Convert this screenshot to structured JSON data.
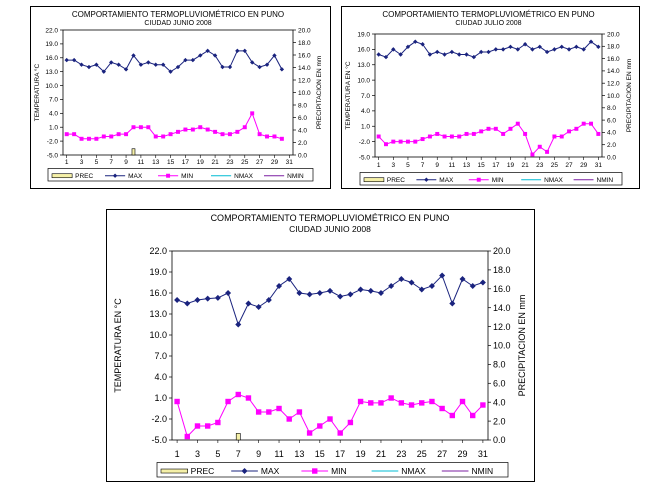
{
  "chart_data": [
    {
      "type": "line",
      "title": "COMPORTAMIENTO TERMOPLUVIOMÉTRICO EN PUNO",
      "subtitle": "CIUDAD JUNIO 2008",
      "ylabel": "TEMPERATURA °C",
      "ylabel2": "PRECIPITACION EN mm",
      "ylim": [
        -5,
        22
      ],
      "yticks": [
        "22.0",
        "19.0",
        "16.0",
        "13.0",
        "10.0",
        "7.0",
        "4.0",
        "1.0",
        "-2.0",
        "-5.0"
      ],
      "y2lim": [
        0,
        20
      ],
      "y2ticks": [
        "20.0",
        "18.0",
        "16.0",
        "14.0",
        "12.0",
        "10.0",
        "8.0",
        "6.0",
        "4.0",
        "2.0",
        "0.0"
      ],
      "x": [
        1,
        2,
        3,
        4,
        5,
        6,
        7,
        8,
        9,
        10,
        11,
        12,
        13,
        14,
        15,
        16,
        17,
        18,
        19,
        20,
        21,
        22,
        23,
        24,
        25,
        26,
        27,
        28,
        29,
        30,
        31
      ],
      "xticks": [
        "1",
        "3",
        "5",
        "7",
        "9",
        "11",
        "13",
        "15",
        "17",
        "19",
        "21",
        "23",
        "25",
        "27",
        "29",
        "31"
      ],
      "series": [
        {
          "name": "MAX",
          "color": "#1a237e",
          "values": [
            15.5,
            15.5,
            14.5,
            14,
            14.5,
            13,
            15,
            14.5,
            13.5,
            16.5,
            14.5,
            15,
            14.5,
            14.5,
            13,
            14,
            15.5,
            15.5,
            16.5,
            17.5,
            16.5,
            14,
            14,
            17.5,
            17.5,
            15,
            14,
            14.5,
            16.5,
            13.5,
            null
          ]
        },
        {
          "name": "MIN",
          "color": "#ff00ff",
          "values": [
            -0.5,
            -0.5,
            -1.5,
            -1.5,
            -1.5,
            -1,
            -1,
            -0.5,
            -0.5,
            1,
            1,
            1,
            -1,
            -1,
            -0.5,
            0,
            0.5,
            0.5,
            1,
            0.5,
            0,
            -0.5,
            -0.5,
            0,
            1,
            4,
            -0.5,
            -1,
            -1,
            -1.5,
            null
          ]
        },
        {
          "name": "PREC",
          "type": "bar",
          "color": "#f5f0a8",
          "values": [
            0,
            0,
            0,
            0,
            0,
            0,
            0,
            0,
            0,
            1,
            0,
            0,
            0,
            0,
            0,
            0,
            0,
            0,
            0,
            0,
            0,
            0,
            0,
            0,
            0,
            0,
            0,
            0,
            0,
            0,
            0
          ]
        }
      ],
      "legend": [
        "PREC",
        "MAX",
        "MIN",
        "NMAX",
        "NMIN"
      ]
    },
    {
      "type": "line",
      "title": "COMPORTAMIENTO TERMOPLUVIOMÉTRICO EN PUNO",
      "subtitle": "CIUDAD JULIO 2008",
      "ylabel": "TEMPERATURA EN °C",
      "ylabel2": "PRECIPITACION EN mm",
      "ylim": [
        -5,
        19
      ],
      "yticks": [
        "19.0",
        "16.0",
        "13.0",
        "10.0",
        "7.0",
        "4.0",
        "1.0",
        "-2.0",
        "-5.0"
      ],
      "y2lim": [
        0,
        20
      ],
      "y2ticks": [
        "20.0",
        "18.0",
        "16.0",
        "14.0",
        "12.0",
        "10.0",
        "8.0",
        "6.0",
        "4.0",
        "2.0",
        "0.0"
      ],
      "x": [
        1,
        2,
        3,
        4,
        5,
        6,
        7,
        8,
        9,
        10,
        11,
        12,
        13,
        14,
        15,
        16,
        17,
        18,
        19,
        20,
        21,
        22,
        23,
        24,
        25,
        26,
        27,
        28,
        29,
        30,
        31
      ],
      "xticks": [
        "1",
        "3",
        "5",
        "7",
        "9",
        "11",
        "13",
        "15",
        "17",
        "19",
        "21",
        "23",
        "25",
        "27",
        "29",
        "31"
      ],
      "series": [
        {
          "name": "MAX",
          "color": "#1a237e",
          "values": [
            15,
            14.5,
            16,
            15,
            16.5,
            17.5,
            17,
            15,
            15.5,
            15,
            15.5,
            15,
            15,
            14.5,
            15.5,
            15.5,
            16,
            16,
            16.5,
            16,
            17,
            16,
            16.5,
            15.5,
            16,
            16.5,
            16,
            16.5,
            16,
            17.5,
            16.5
          ]
        },
        {
          "name": "MIN",
          "color": "#ff00ff",
          "values": [
            -1,
            -2.5,
            -2,
            -2,
            -2,
            -2,
            -1.5,
            -1,
            -0.5,
            -1,
            -1,
            -1,
            -0.5,
            -0.5,
            0,
            0.5,
            0.5,
            -0.5,
            0.5,
            1.5,
            -0.5,
            -4.5,
            -3,
            -4,
            -1,
            -1,
            0,
            0.5,
            1.5,
            1.5,
            -0.5
          ]
        },
        {
          "name": "PREC",
          "type": "bar",
          "color": "#f5f0a8",
          "values": [
            0,
            0,
            0,
            0,
            0,
            0,
            0,
            0,
            0,
            0,
            0,
            0,
            0,
            0,
            0,
            0,
            0,
            0,
            0,
            0,
            0,
            0,
            0,
            0,
            0,
            0,
            0,
            0,
            0,
            0,
            0
          ]
        }
      ],
      "legend": [
        "PREC",
        "MAX",
        "MIN",
        "NMAX",
        "NMIN"
      ]
    },
    {
      "type": "line",
      "title": "COMPORTAMIENTO TERMOPLUVIOMÉTRICO EN PUNO",
      "subtitle": "CIUDAD JUNIO 2008",
      "ylabel": "TEMPERATURA EN °C",
      "ylabel2": "PRECIPITACION EN mm",
      "ylim": [
        -5,
        22
      ],
      "yticks": [
        "22.0",
        "19.0",
        "16.0",
        "13.0",
        "10.0",
        "7.0",
        "4.0",
        "1.0",
        "-2.0",
        "-5.0"
      ],
      "y2lim": [
        0,
        20
      ],
      "y2ticks": [
        "20.0",
        "18.0",
        "16.0",
        "14.0",
        "12.0",
        "10.0",
        "8.0",
        "6.0",
        "4.0",
        "2.0",
        "0.0"
      ],
      "x": [
        1,
        2,
        3,
        4,
        5,
        6,
        7,
        8,
        9,
        10,
        11,
        12,
        13,
        14,
        15,
        16,
        17,
        18,
        19,
        20,
        21,
        22,
        23,
        24,
        25,
        26,
        27,
        28,
        29,
        30,
        31
      ],
      "xticks": [
        "1",
        "3",
        "5",
        "7",
        "9",
        "11",
        "13",
        "15",
        "17",
        "19",
        "21",
        "23",
        "25",
        "27",
        "29",
        "31"
      ],
      "series": [
        {
          "name": "MAX",
          "color": "#1a237e",
          "values": [
            15,
            14.5,
            15,
            15.2,
            15.3,
            16,
            11.5,
            14.5,
            14,
            15,
            17,
            18,
            16,
            15.8,
            16,
            16.3,
            15.5,
            15.8,
            16.5,
            16.3,
            16,
            17,
            18,
            17.5,
            16.5,
            17,
            18.5,
            14.5,
            18,
            17,
            17.5
          ]
        },
        {
          "name": "MIN",
          "color": "#ff00ff",
          "values": [
            0.5,
            -4.5,
            -3,
            -3,
            -2.5,
            0.5,
            1.5,
            1,
            -1,
            -1,
            -0.5,
            -2,
            -1,
            -4,
            -3,
            -2,
            -4,
            -2.5,
            0.5,
            0.3,
            0.3,
            1,
            0.3,
            0,
            0.3,
            0.5,
            -0.5,
            -1.5,
            0.5,
            -1.5,
            0
          ]
        },
        {
          "name": "PREC",
          "type": "bar",
          "color": "#f5f0a8",
          "values": [
            0,
            0,
            0,
            0,
            0,
            0,
            0.7,
            0,
            0,
            0,
            0,
            0,
            0,
            0,
            0,
            0,
            0,
            0,
            0,
            0,
            0,
            0,
            0,
            0,
            0,
            0,
            0,
            0,
            0,
            0,
            0
          ]
        }
      ],
      "legend": [
        "PREC",
        "MAX",
        "MIN",
        "NMAX",
        "NMIN"
      ]
    }
  ]
}
